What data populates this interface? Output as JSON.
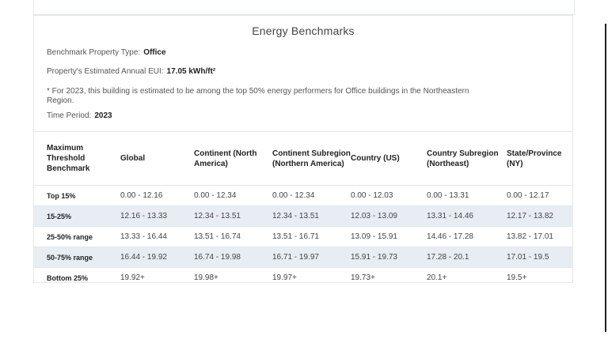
{
  "header": {
    "title": "Energy Benchmarks",
    "property_type_label": "Benchmark Property Type:",
    "property_type_value": "Office",
    "eui_label": "Property's Estimated Annual EUI:",
    "eui_value": "17.05  kWh/ft²",
    "note": "* For 2023, this building is estimated to be among the top 50% energy performers for Office buildings in the Northeastern Region.",
    "time_period_label": "Time Period:",
    "time_period_value": "2023"
  },
  "table": {
    "columns": [
      "Maximum Threshold Benchmark",
      "Global",
      "Continent (North America)",
      "Continent Subregion (Northern America)",
      "Country (US)",
      "Country Subregion (Northeast)",
      "State/Province (NY)"
    ],
    "rows": [
      {
        "label": "Top 15%",
        "values": [
          "0.00 - 12.16",
          "0.00 - 12.34",
          "0.00 - 12.34",
          "0.00 - 12.03",
          "0.00 - 13.31",
          "0.00 - 12.17"
        ]
      },
      {
        "label": "15-25%",
        "values": [
          "12.16 - 13.33",
          "12.34 - 13.51",
          "12.34 - 13.51",
          "12.03 - 13.09",
          "13.31 - 14.46",
          "12.17 - 13.82"
        ]
      },
      {
        "label": "25-50% range",
        "values": [
          "13.33 - 16.44",
          "13.51 - 16.74",
          "13.51 - 16.71",
          "13.09 - 15.91",
          "14.46 - 17.28",
          "13.82 - 17.01"
        ]
      },
      {
        "label": "50-75% range",
        "values": [
          "16.44 - 19.92",
          "16.74 - 19.98",
          "16.71 - 19.97",
          "15.91 - 19.73",
          "17.28 - 20.1",
          "17.01 - 19.5"
        ]
      },
      {
        "label": "Bottom 25%",
        "values": [
          "19.92+",
          "19.98+",
          "19.97+",
          "19.73+",
          "20.1+",
          "19.5+"
        ]
      }
    ]
  }
}
